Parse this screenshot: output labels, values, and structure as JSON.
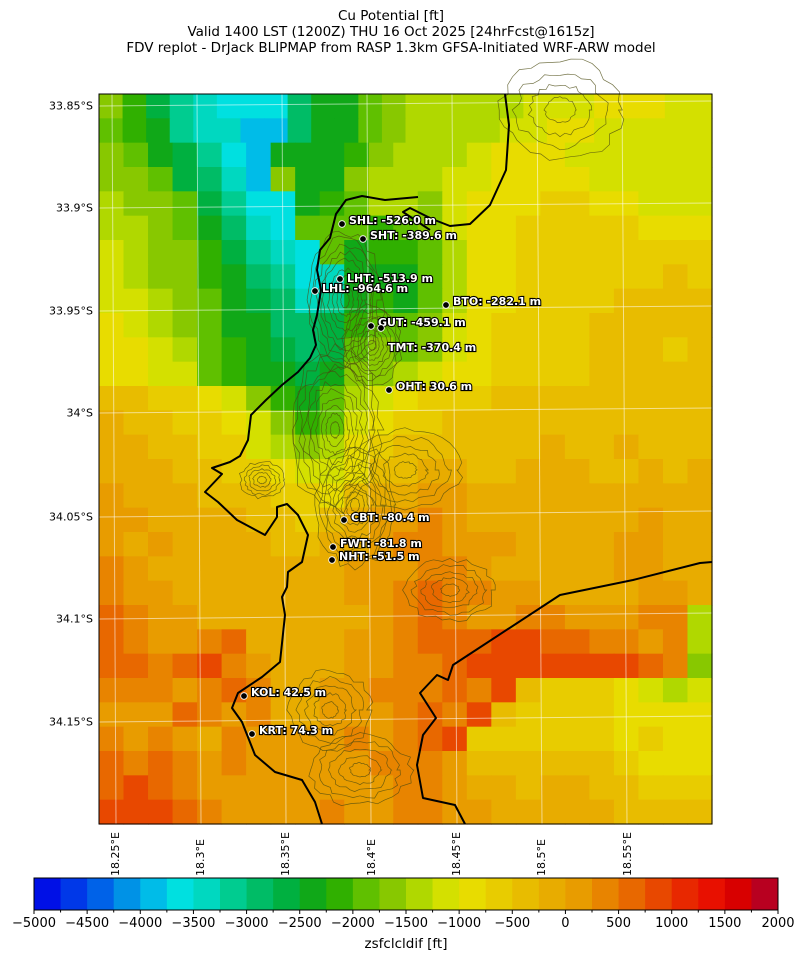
{
  "title": {
    "line1": "Cu Potential [ft]",
    "line2": "Valid 1400 LST (1200Z) THU 16 Oct 2025 [24hrFcst@1615z]",
    "line3": "FDV replot - DrJack BLIPMAP from RASP 1.3km GFSA-Initiated WRF-ARW model"
  },
  "axes": {
    "lat_labels": [
      "33.85°S",
      "33.9°S",
      "33.95°S",
      "34°S",
      "34.05°S",
      "34.1°S",
      "34.15°S"
    ],
    "lon_labels": [
      "18.25°E",
      "18.3°E",
      "18.35°E",
      "18.4°E",
      "18.45°E",
      "18.5°E",
      "18.55°E"
    ]
  },
  "stations": [
    {
      "label": "SHL: -526.0 m"
    },
    {
      "label": "SHT: -389.6 m"
    },
    {
      "label": "LHT: -513.9 m"
    },
    {
      "label": "LHL: -964.6 m"
    },
    {
      "label": "BTO: -282.1 m"
    },
    {
      "label": "GUT: -459.1 m"
    },
    {
      "label": "TMT: -370.4 m"
    },
    {
      "label": "OHT: 30.6 m"
    },
    {
      "label": "CBT: -80.4 m"
    },
    {
      "label": "FWT: -81.8 m"
    },
    {
      "label": "NHT: -51.5 m"
    },
    {
      "label": "KOL: 42.5 m"
    },
    {
      "label": "KRT: 74.3 m"
    }
  ],
  "colorbar": {
    "label": "zsfclcldif [ft]",
    "min": -5000,
    "max": 2000,
    "step": 250,
    "tick_labels": [
      "−5000",
      "−4500",
      "−4000",
      "−3500",
      "−3000",
      "−2500",
      "−2000",
      "−1500",
      "−1000",
      "−500",
      "0",
      "500",
      "1000",
      "1500",
      "2000"
    ],
    "colors": [
      "#0010e6",
      "#0038e8",
      "#0062e8",
      "#0092e6",
      "#00bce8",
      "#00e0e0",
      "#00d8c0",
      "#00cc90",
      "#00bc66",
      "#00b040",
      "#10a818",
      "#30b000",
      "#60c000",
      "#88c800",
      "#b0d800",
      "#d4e000",
      "#e8dc00",
      "#e8cc00",
      "#e8bc00",
      "#e8ac00",
      "#e89c00",
      "#e88400",
      "#e86800",
      "#e84800",
      "#e82800",
      "#e81000",
      "#d80000",
      "#b80020"
    ]
  },
  "field_index_key": "0123456789ABCDEFGHIJKLMNOPQR",
  "field": [
    "DB97655 8AACDEEEEEFFFGGGFF",
    "CBA7664 8AACDEEEEFFGGFFFFF",
    "DCA9754AAABDEEEFGGGFFFFFF",
    "DDC9864DAADEEEFFGGGGFFFFF",
    "EDDC9755ABCEEDFGGGHHGGFFF",
    "EEDCA865CCCBCDFGGHHHHHGGG",
    "FEDDB9765CABBCEGGHHHHHHHH",
    "FEDDBA8756AAACEGGHHHHHHIH",
    "FFEDCA9867ABACEGGHHHHIIII",
    "GFEDCAA889BCCDFGHHHHIIIII",
    "GGFECBA989CDCDFGHHHHIIIHI",
    "GGFFCBAA9ADDEFGGHHHHIIIII",
    "IIHHGFDBACEFGHHHIIIIIIIII",
    "JIIHHGFDBCFGHHIIIIIIIIIII",
    "JJIIHHFEDEGHIIIIIIJIIJIII",
    "JJJIIHHGFFGIIJJIIJJJIIJIJ",
    "KJJJIIIHHGIJJKKJJJJJJJJJJ",
    "KKJJJJIIHIJKKLKJJJJJJJKJJ",
    "KJKJJJJIIJJKLLKKKJJJJKKJJ",
    "LKJJJJJJJJKKKLLKJJJJJKKJJ",
    "LKKJJJJJJJKKLMLLKKJJJJKKJ",
    "MLKKJJJJJJJKLMLKKLLKKKLLE",
    "MLKKLMJJJJKKLMMMNNMMLLKLE",
    "MMLMNLKJJJKKLLMNNNNNNNMLD",
    "LLLKLMLJJKKLLLMLNIHHHGFEF",
    "KKKMLKLJJKKKLMLNIHHHHGGGG",
    "LKLKJLKKKKLKLMNHHHHHHGHGG",
    "MLMLKLKKKKKLLLKIIIIIIHGGG",
    "MNMLKKKKKKKKLLKJJIJJIIHHH",
    "NNNMLKKKKLKKLLKKJJJJJIIII"
  ]
}
